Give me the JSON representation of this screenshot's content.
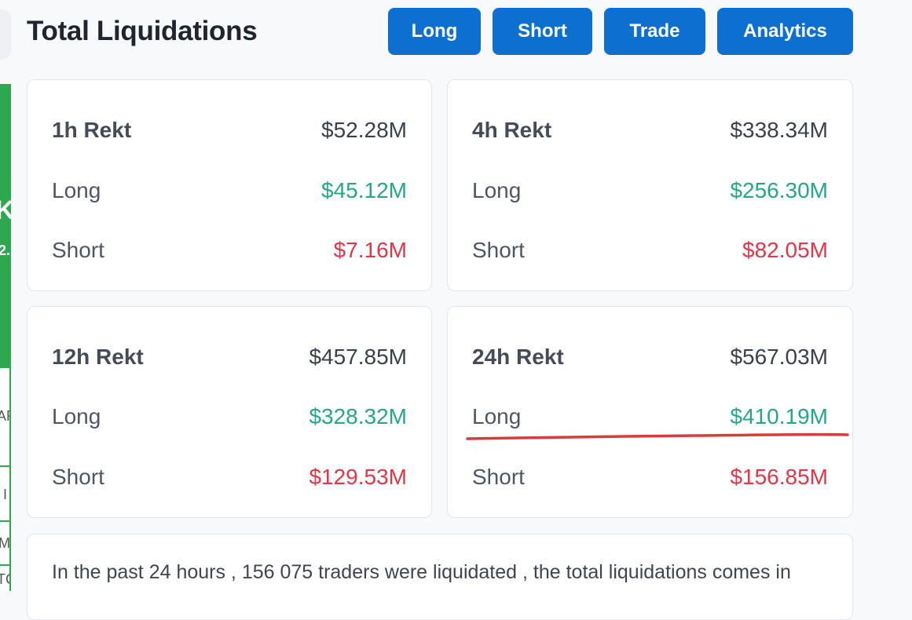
{
  "header": {
    "title": "Total Liquidations",
    "buttons": [
      {
        "label": "Long"
      },
      {
        "label": "Short"
      },
      {
        "label": "Trade"
      },
      {
        "label": "Analytics"
      }
    ]
  },
  "sidebar_fragments": {
    "big": "KI",
    "small": "2.",
    "ar": "AR",
    "i": "I",
    "m": "M",
    "tc": "TC"
  },
  "cards": [
    {
      "title": "1h Rekt",
      "total": "$52.28M",
      "long_label": "Long",
      "long": "$45.12M",
      "short_label": "Short",
      "short": "$7.16M"
    },
    {
      "title": "4h Rekt",
      "total": "$338.34M",
      "long_label": "Long",
      "long": "$256.30M",
      "short_label": "Short",
      "short": "$82.05M"
    },
    {
      "title": "12h Rekt",
      "total": "$457.85M",
      "long_label": "Long",
      "long": "$328.32M",
      "short_label": "Short",
      "short": "$129.53M"
    },
    {
      "title": "24h Rekt",
      "total": "$567.03M",
      "long_label": "Long",
      "long": "$410.19M",
      "short_label": "Short",
      "short": "$156.85M"
    }
  ],
  "summary": {
    "text": "In the past 24 hours , 156 075 traders were liquidated , the total liquidations comes in"
  },
  "colors": {
    "accent": "#0d6fcf",
    "long": "#27a588",
    "short": "#e03647",
    "annotation": "#d93a3a",
    "sidebar_green": "#2ea84f"
  }
}
